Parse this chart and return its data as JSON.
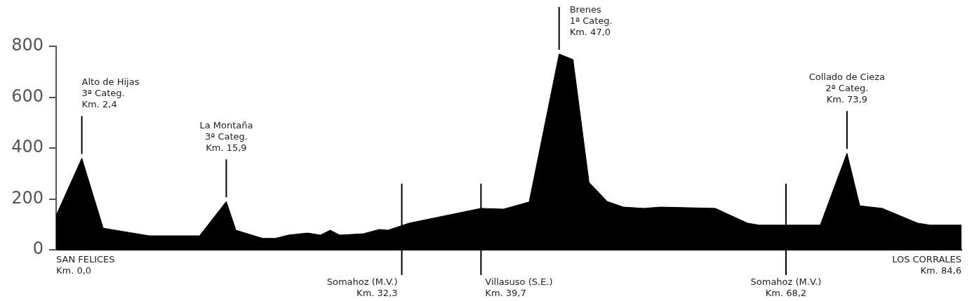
{
  "chart_data": {
    "type": "area",
    "color": "#000000",
    "x": [
      0,
      2.4,
      4.4,
      8.7,
      13.4,
      15.9,
      16.8,
      19.3,
      20.5,
      21.7,
      23.5,
      24.7,
      25.6,
      26.5,
      28.7,
      30.2,
      31.0,
      33.0,
      39.7,
      41.8,
      44.2,
      47.0,
      48.3,
      49.8,
      51.5,
      53.0,
      54.9,
      56.5,
      61.6,
      64.6,
      65.7,
      71.4,
      73.9,
      75.1,
      77.2,
      80.5,
      81.7,
      84.6
    ],
    "values": [
      135,
      360,
      85,
      55,
      55,
      190,
      77,
      45,
      45,
      58,
      66,
      58,
      77,
      58,
      63,
      80,
      77,
      105,
      163,
      160,
      188,
      770,
      748,
      265,
      190,
      168,
      163,
      168,
      163,
      105,
      97,
      97,
      380,
      173,
      163,
      105,
      97,
      97
    ],
    "xlim": [
      0,
      84.6
    ],
    "ylim": [
      0,
      800
    ],
    "yticks": [
      0,
      200,
      400,
      600,
      800
    ],
    "tick_labels": "y",
    "annotations": [
      {
        "text": "Alto de Hijas\n3ª Categ.\nKm. 2,4",
        "x": 2.4,
        "y": 360
      },
      {
        "text": "La Montaña\n3ª Categ.\nKm. 15,9",
        "x": 15.9,
        "y": 190
      },
      {
        "text": "Brenes\n1ª Categ.\nKm. 47,0",
        "x": 47.0,
        "y": 770
      },
      {
        "text": "Collado de Cieza\n2ª Categ.\nKm. 73,9",
        "x": 73.9,
        "y": 380
      },
      "SAN FELICES\nKm. 0,0",
      "LOS CORRALES\nKm. 84,6"
    ],
    "ref_lines": [
      {
        "axis": "x",
        "value": 32.3,
        "label": "Somahoz (M.V.)\nKm. 32,3"
      },
      {
        "axis": "x",
        "value": 39.7,
        "label": "Villasuso (S.E.)\nKm. 39,7"
      },
      {
        "axis": "x",
        "value": 68.2,
        "label": "Somahoz (M.V.)\nKm. 68,2"
      }
    ]
  }
}
